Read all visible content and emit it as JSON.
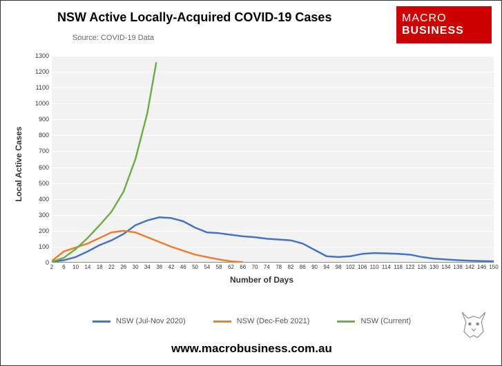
{
  "title": "NSW Active Locally-Acquired COVID-19 Cases",
  "source": "Source: COVID-19 Data",
  "logo": {
    "line1": "MACRO",
    "line2": "BUSINESS",
    "bg": "#cc0000",
    "fg": "#ffffff"
  },
  "footer_url": "www.macrobusiness.com.au",
  "chart": {
    "type": "line",
    "plot_bg": "#f2f2f2",
    "grid_color": "#ffffff",
    "axis_color": "#888888",
    "x_label": "Number of Days",
    "y_label": "Local Active Cases",
    "label_fontsize": 12,
    "tick_fontsize": 9,
    "ylim": [
      0,
      1300
    ],
    "ytick_step": 100,
    "x_ticks": [
      2,
      6,
      10,
      14,
      18,
      22,
      26,
      30,
      34,
      38,
      42,
      46,
      50,
      54,
      58,
      62,
      66,
      70,
      74,
      78,
      82,
      86,
      90,
      94,
      98,
      102,
      106,
      110,
      114,
      118,
      122,
      126,
      130,
      134,
      138,
      142,
      146,
      150
    ],
    "xlim": [
      2,
      150
    ],
    "line_width": 2.5,
    "series": [
      {
        "name": "NSW (Jul-Nov 2020)",
        "color": "#4472c4",
        "data": [
          [
            2,
            5
          ],
          [
            6,
            15
          ],
          [
            10,
            35
          ],
          [
            14,
            70
          ],
          [
            18,
            110
          ],
          [
            22,
            140
          ],
          [
            26,
            180
          ],
          [
            30,
            235
          ],
          [
            34,
            265
          ],
          [
            38,
            285
          ],
          [
            42,
            280
          ],
          [
            46,
            260
          ],
          [
            50,
            220
          ],
          [
            54,
            190
          ],
          [
            58,
            185
          ],
          [
            62,
            175
          ],
          [
            66,
            165
          ],
          [
            70,
            160
          ],
          [
            74,
            150
          ],
          [
            78,
            145
          ],
          [
            82,
            140
          ],
          [
            86,
            120
          ],
          [
            90,
            80
          ],
          [
            94,
            40
          ],
          [
            98,
            35
          ],
          [
            102,
            40
          ],
          [
            106,
            55
          ],
          [
            110,
            60
          ],
          [
            114,
            58
          ],
          [
            118,
            55
          ],
          [
            122,
            50
          ],
          [
            126,
            35
          ],
          [
            130,
            25
          ],
          [
            134,
            20
          ],
          [
            138,
            15
          ],
          [
            142,
            12
          ],
          [
            146,
            10
          ],
          [
            150,
            8
          ]
        ]
      },
      {
        "name": "NSW (Dec-Feb 2021)",
        "color": "#ed7d31",
        "data": [
          [
            2,
            10
          ],
          [
            6,
            70
          ],
          [
            10,
            95
          ],
          [
            14,
            120
          ],
          [
            18,
            155
          ],
          [
            22,
            190
          ],
          [
            26,
            200
          ],
          [
            30,
            190
          ],
          [
            34,
            160
          ],
          [
            38,
            130
          ],
          [
            42,
            100
          ],
          [
            46,
            75
          ],
          [
            50,
            50
          ],
          [
            54,
            35
          ],
          [
            58,
            20
          ],
          [
            62,
            8
          ],
          [
            66,
            3
          ]
        ]
      },
      {
        "name": "NSW (Current)",
        "color": "#70ad47",
        "data": [
          [
            2,
            5
          ],
          [
            6,
            30
          ],
          [
            10,
            85
          ],
          [
            14,
            155
          ],
          [
            18,
            235
          ],
          [
            22,
            320
          ],
          [
            26,
            445
          ],
          [
            30,
            650
          ],
          [
            34,
            940
          ],
          [
            37,
            1260
          ]
        ]
      }
    ]
  },
  "wolf_icon_color": "#888888"
}
